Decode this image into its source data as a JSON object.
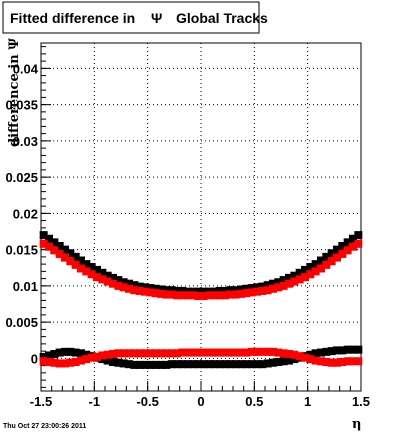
{
  "chart_data": {
    "type": "scatter",
    "title": "Fitted difference in",
    "title_symbol": "Ψ",
    "title_suffix": "Global Tracks",
    "xlabel": "η",
    "ylabel": "difference in Ψ",
    "xlim": [
      -1.5,
      1.5
    ],
    "ylim": [
      -0.0045,
      0.0435
    ],
    "grid": true,
    "x_ticks": [
      "-1.5",
      "-1",
      "-0.5",
      "0",
      "0.5",
      "1",
      "1.5"
    ],
    "y_ticks": [
      "0",
      "0.005",
      "0.01",
      "0.015",
      "0.02",
      "0.025",
      "0.03",
      "0.035",
      "0.04"
    ],
    "timestamp": "Thu Oct 27 23:00:26 2011",
    "x": [
      -1.475,
      -1.425,
      -1.375,
      -1.325,
      -1.275,
      -1.225,
      -1.175,
      -1.125,
      -1.075,
      -1.025,
      -0.975,
      -0.925,
      -0.875,
      -0.825,
      -0.775,
      -0.725,
      -0.675,
      -0.625,
      -0.575,
      -0.525,
      -0.475,
      -0.425,
      -0.375,
      -0.325,
      -0.275,
      -0.225,
      -0.175,
      -0.125,
      -0.075,
      -0.025,
      0.025,
      0.075,
      0.125,
      0.175,
      0.225,
      0.275,
      0.325,
      0.375,
      0.425,
      0.475,
      0.525,
      0.575,
      0.625,
      0.675,
      0.725,
      0.775,
      0.825,
      0.875,
      0.925,
      0.975,
      1.025,
      1.075,
      1.125,
      1.175,
      1.225,
      1.275,
      1.325,
      1.375,
      1.425,
      1.475
    ],
    "series": [
      {
        "color": "#000000",
        "values": [
          0.017,
          0.0165,
          0.016,
          0.0155,
          0.015,
          0.0145,
          0.014,
          0.0135,
          0.013,
          0.0126,
          0.0122,
          0.0118,
          0.0114,
          0.0111,
          0.0108,
          0.0105,
          0.0103,
          0.0101,
          0.0099,
          0.0098,
          0.0097,
          0.0096,
          0.0095,
          0.0094,
          0.0094,
          0.0093,
          0.0093,
          0.0092,
          0.0092,
          0.0092,
          0.0092,
          0.0092,
          0.0092,
          0.0093,
          0.0093,
          0.0094,
          0.0094,
          0.0095,
          0.0096,
          0.0097,
          0.0098,
          0.0099,
          0.0101,
          0.0103,
          0.0105,
          0.0108,
          0.0111,
          0.0114,
          0.0118,
          0.0122,
          0.0126,
          0.013,
          0.0135,
          0.014,
          0.0145,
          0.015,
          0.0155,
          0.016,
          0.0165,
          0.017
        ]
      },
      {
        "color": "#ff0000",
        "values": [
          0.0158,
          0.0154,
          0.0149,
          0.0144,
          0.0139,
          0.0134,
          0.0129,
          0.0124,
          0.012,
          0.0116,
          0.0112,
          0.0109,
          0.0106,
          0.0103,
          0.01,
          0.0098,
          0.0096,
          0.0094,
          0.0093,
          0.0092,
          0.0091,
          0.009,
          0.0089,
          0.0088,
          0.0088,
          0.0087,
          0.0087,
          0.0087,
          0.0087,
          0.0086,
          0.0086,
          0.0087,
          0.0087,
          0.0087,
          0.0087,
          0.0088,
          0.0088,
          0.0089,
          0.009,
          0.0091,
          0.0092,
          0.0093,
          0.0094,
          0.0096,
          0.0098,
          0.01,
          0.0103,
          0.0106,
          0.0109,
          0.0112,
          0.0116,
          0.012,
          0.0124,
          0.0129,
          0.0134,
          0.0139,
          0.0144,
          0.0149,
          0.0154,
          0.0158
        ]
      },
      {
        "color": "#000000",
        "values": [
          0.0002,
          0.0004,
          0.0006,
          0.0008,
          0.0009,
          0.0009,
          0.0008,
          0.0007,
          0.0005,
          0.0003,
          0.0001,
          -0.0001,
          -0.0003,
          -0.0005,
          -0.0006,
          -0.0007,
          -0.0008,
          -0.0009,
          -0.0009,
          -0.0009,
          -0.0009,
          -0.0009,
          -0.0009,
          -0.0009,
          -0.0008,
          -0.0008,
          -0.0008,
          -0.0008,
          -0.0008,
          -0.0008,
          -0.0008,
          -0.0008,
          -0.0008,
          -0.0008,
          -0.0008,
          -0.0008,
          -0.0008,
          -0.0008,
          -0.0008,
          -0.0008,
          -0.0008,
          -0.0008,
          -0.0007,
          -0.0006,
          -0.0005,
          -0.0004,
          -0.0003,
          -0.0001,
          0.0001,
          0.0003,
          0.0005,
          0.0007,
          0.0008,
          0.0009,
          0.001,
          0.0011,
          0.0011,
          0.0012,
          0.0012,
          0.0012
        ]
      },
      {
        "color": "#ff0000",
        "values": [
          -0.0004,
          -0.0005,
          -0.0006,
          -0.0007,
          -0.0007,
          -0.0006,
          -0.0005,
          -0.0003,
          -0.0001,
          0.0001,
          0.0002,
          0.0004,
          0.0005,
          0.0006,
          0.0007,
          0.0007,
          0.0007,
          0.0007,
          0.0007,
          0.0007,
          0.0007,
          0.0007,
          0.0007,
          0.0007,
          0.0007,
          0.0007,
          0.0008,
          0.0008,
          0.0008,
          0.0008,
          0.0008,
          0.0008,
          0.0008,
          0.0008,
          0.0008,
          0.0008,
          0.0008,
          0.0008,
          0.0008,
          0.0009,
          0.0009,
          0.0009,
          0.0009,
          0.0009,
          0.0008,
          0.0007,
          0.0006,
          0.0005,
          0.0003,
          0.0001,
          -0.0001,
          -0.0003,
          -0.0004,
          -0.0005,
          -0.0006,
          -0.0006,
          -0.0005,
          -0.0004,
          -0.0004,
          -0.0004
        ]
      }
    ]
  }
}
